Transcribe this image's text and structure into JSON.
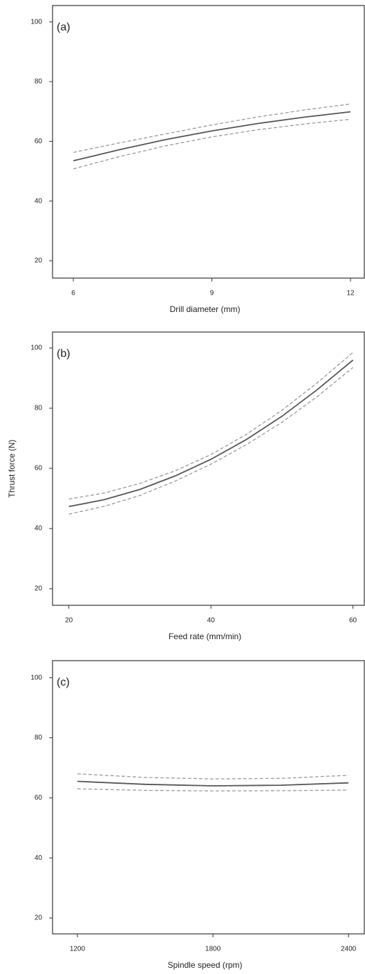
{
  "chart_data": [
    {
      "type": "line",
      "panel_label": "(a)",
      "x_label": "Drill diameter (mm)",
      "x": [
        6,
        7,
        8,
        9,
        10,
        11,
        12
      ],
      "series": [
        {
          "color": "#555555",
          "style": "solid",
          "values": [
            53.5,
            57.2,
            60.6,
            63.5,
            66.0,
            68.1,
            69.9
          ]
        },
        {
          "color": "#999999",
          "style": "dashed",
          "values": [
            56.3,
            59.5,
            62.5,
            65.5,
            68.2,
            70.5,
            72.5
          ]
        },
        {
          "color": "#999999",
          "style": "dashed",
          "values": [
            50.8,
            54.9,
            58.5,
            61.5,
            63.9,
            65.8,
            67.4
          ]
        }
      ],
      "xlim": [
        5.55,
        12.3
      ],
      "ylim": [
        14.2,
        105.5
      ],
      "xticks": [
        6,
        9,
        12
      ],
      "yticks": [
        20,
        40,
        60,
        80,
        100
      ]
    },
    {
      "type": "line",
      "panel_label": "(b)",
      "x_label": "Feed rate (mm/min)",
      "y_label": "Thrust force (N)",
      "x": [
        20,
        25,
        30,
        35,
        40,
        45,
        50,
        55,
        60
      ],
      "series": [
        {
          "color": "#555555",
          "style": "solid",
          "values": [
            47.3,
            49.6,
            53.0,
            57.5,
            63.0,
            69.6,
            77.3,
            86.2,
            96.0
          ]
        },
        {
          "color": "#999999",
          "style": "dashed",
          "values": [
            49.8,
            51.8,
            55.0,
            59.2,
            64.6,
            71.3,
            79.3,
            88.5,
            98.5
          ]
        },
        {
          "color": "#999999",
          "style": "dashed",
          "values": [
            44.8,
            47.4,
            51.0,
            55.8,
            61.4,
            67.9,
            75.3,
            83.9,
            93.5
          ]
        }
      ],
      "xlim": [
        17.7,
        61.6
      ],
      "ylim": [
        14.5,
        105.3
      ],
      "xticks": [
        20,
        40,
        60
      ],
      "yticks": [
        20,
        40,
        60,
        80,
        100
      ]
    },
    {
      "type": "line",
      "panel_label": "(c)",
      "x_label": "Spindle speed (rpm)",
      "x": [
        1200,
        1500,
        1800,
        2100,
        2400
      ],
      "series": [
        {
          "color": "#555555",
          "style": "solid",
          "values": [
            65.5,
            64.5,
            64.0,
            64.2,
            65.0
          ]
        },
        {
          "color": "#999999",
          "style": "dashed",
          "values": [
            68.0,
            66.8,
            66.3,
            66.5,
            67.5
          ]
        },
        {
          "color": "#999999",
          "style": "dashed",
          "values": [
            63.0,
            62.5,
            62.3,
            62.4,
            62.6
          ]
        }
      ],
      "xlim": [
        1090,
        2470
      ],
      "ylim": [
        14.7,
        105.7
      ],
      "xticks": [
        1200,
        1800,
        2400
      ],
      "yticks": [
        20,
        40,
        60,
        80,
        100
      ]
    }
  ]
}
